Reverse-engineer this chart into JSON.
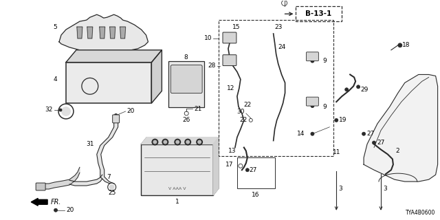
{
  "diagram_code": "TYA4B0600",
  "reference_code": "B-13-1",
  "background_color": "#ffffff",
  "line_color": "#2a2a2a",
  "text_color": "#000000",
  "fig_width": 6.4,
  "fig_height": 3.2,
  "dpi": 100
}
